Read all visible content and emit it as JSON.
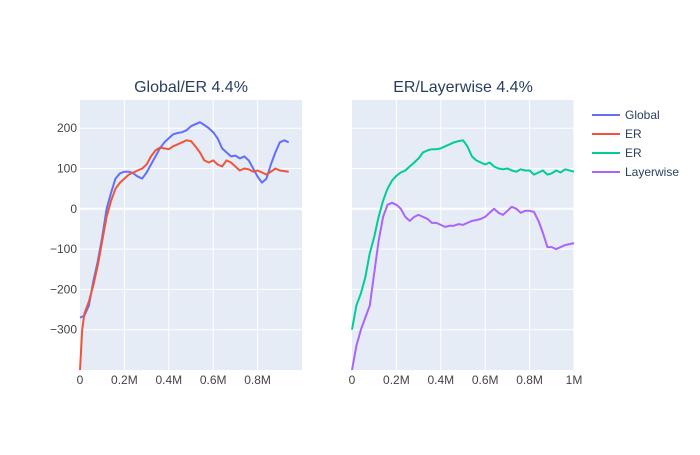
{
  "chart_data": [
    {
      "type": "line",
      "title": "Global/ER 4.4%",
      "xlim": [
        0,
        1000000
      ],
      "ylim": [
        -400,
        270
      ],
      "xticks": [
        0,
        200000,
        400000,
        600000,
        800000
      ],
      "xtick_labels": [
        "0",
        "0.2M",
        "0.4M",
        "0.6M",
        "0.8M"
      ],
      "yticks": [
        -300,
        -200,
        -100,
        0,
        100,
        200
      ],
      "ytick_labels": [
        "−300",
        "−200",
        "−100",
        "0",
        "100",
        "200"
      ],
      "grid": true,
      "series": [
        {
          "name": "Global",
          "color": "#636efa",
          "points": [
            [
              0,
              -270
            ],
            [
              20000,
              -265
            ],
            [
              40000,
              -240
            ],
            [
              60000,
              -180
            ],
            [
              80000,
              -130
            ],
            [
              100000,
              -70
            ],
            [
              120000,
              0
            ],
            [
              140000,
              40
            ],
            [
              160000,
              75
            ],
            [
              180000,
              88
            ],
            [
              200000,
              92
            ],
            [
              220000,
              92
            ],
            [
              240000,
              88
            ],
            [
              260000,
              80
            ],
            [
              280000,
              75
            ],
            [
              300000,
              90
            ],
            [
              320000,
              110
            ],
            [
              340000,
              130
            ],
            [
              360000,
              150
            ],
            [
              380000,
              165
            ],
            [
              400000,
              175
            ],
            [
              420000,
              185
            ],
            [
              440000,
              188
            ],
            [
              460000,
              190
            ],
            [
              480000,
              195
            ],
            [
              500000,
              205
            ],
            [
              520000,
              210
            ],
            [
              540000,
              215
            ],
            [
              560000,
              208
            ],
            [
              580000,
              200
            ],
            [
              600000,
              190
            ],
            [
              620000,
              175
            ],
            [
              640000,
              150
            ],
            [
              660000,
              140
            ],
            [
              680000,
              130
            ],
            [
              700000,
              132
            ],
            [
              720000,
              125
            ],
            [
              740000,
              130
            ],
            [
              760000,
              120
            ],
            [
              780000,
              100
            ],
            [
              800000,
              80
            ],
            [
              820000,
              65
            ],
            [
              840000,
              75
            ],
            [
              860000,
              110
            ],
            [
              880000,
              140
            ],
            [
              900000,
              165
            ],
            [
              920000,
              170
            ],
            [
              940000,
              165
            ]
          ]
        },
        {
          "name": "ER",
          "color": "#ef553b",
          "points": [
            [
              0,
              -400
            ],
            [
              10000,
              -300
            ],
            [
              20000,
              -260
            ],
            [
              40000,
              -230
            ],
            [
              60000,
              -190
            ],
            [
              80000,
              -140
            ],
            [
              100000,
              -80
            ],
            [
              120000,
              -20
            ],
            [
              140000,
              20
            ],
            [
              160000,
              50
            ],
            [
              180000,
              65
            ],
            [
              200000,
              75
            ],
            [
              220000,
              85
            ],
            [
              240000,
              90
            ],
            [
              260000,
              95
            ],
            [
              280000,
              100
            ],
            [
              300000,
              110
            ],
            [
              320000,
              130
            ],
            [
              340000,
              145
            ],
            [
              360000,
              152
            ],
            [
              380000,
              150
            ],
            [
              400000,
              148
            ],
            [
              420000,
              155
            ],
            [
              440000,
              160
            ],
            [
              460000,
              165
            ],
            [
              480000,
              170
            ],
            [
              500000,
              168
            ],
            [
              520000,
              155
            ],
            [
              540000,
              140
            ],
            [
              560000,
              120
            ],
            [
              580000,
              115
            ],
            [
              600000,
              120
            ],
            [
              620000,
              110
            ],
            [
              640000,
              105
            ],
            [
              660000,
              120
            ],
            [
              680000,
              115
            ],
            [
              700000,
              105
            ],
            [
              720000,
              95
            ],
            [
              740000,
              100
            ],
            [
              760000,
              98
            ],
            [
              780000,
              92
            ],
            [
              800000,
              95
            ],
            [
              820000,
              90
            ],
            [
              840000,
              85
            ],
            [
              860000,
              92
            ],
            [
              880000,
              100
            ],
            [
              900000,
              95
            ],
            [
              940000,
              92
            ]
          ]
        }
      ]
    },
    {
      "type": "line",
      "title": "ER/Layerwise 4.4%",
      "xlim": [
        0,
        1000000
      ],
      "ylim": [
        -400,
        270
      ],
      "xticks": [
        0,
        200000,
        400000,
        600000,
        800000,
        1000000
      ],
      "xtick_labels": [
        "0",
        "0.2M",
        "0.4M",
        "0.6M",
        "0.8M",
        "1M"
      ],
      "yticks": [
        -300,
        -200,
        -100,
        0,
        100,
        200
      ],
      "grid": true,
      "series": [
        {
          "name": "ER",
          "color": "#00cc96",
          "points": [
            [
              0,
              -300
            ],
            [
              20000,
              -240
            ],
            [
              40000,
              -210
            ],
            [
              60000,
              -170
            ],
            [
              80000,
              -110
            ],
            [
              100000,
              -70
            ],
            [
              120000,
              -20
            ],
            [
              140000,
              20
            ],
            [
              160000,
              50
            ],
            [
              180000,
              70
            ],
            [
              200000,
              82
            ],
            [
              220000,
              90
            ],
            [
              240000,
              95
            ],
            [
              260000,
              105
            ],
            [
              280000,
              115
            ],
            [
              300000,
              125
            ],
            [
              320000,
              140
            ],
            [
              340000,
              145
            ],
            [
              360000,
              148
            ],
            [
              380000,
              148
            ],
            [
              400000,
              150
            ],
            [
              420000,
              155
            ],
            [
              440000,
              160
            ],
            [
              460000,
              165
            ],
            [
              480000,
              168
            ],
            [
              500000,
              170
            ],
            [
              520000,
              155
            ],
            [
              540000,
              130
            ],
            [
              560000,
              120
            ],
            [
              580000,
              115
            ],
            [
              600000,
              110
            ],
            [
              620000,
              115
            ],
            [
              640000,
              105
            ],
            [
              660000,
              100
            ],
            [
              680000,
              98
            ],
            [
              700000,
              100
            ],
            [
              720000,
              95
            ],
            [
              740000,
              92
            ],
            [
              760000,
              98
            ],
            [
              780000,
              95
            ],
            [
              800000,
              95
            ],
            [
              820000,
              85
            ],
            [
              840000,
              90
            ],
            [
              860000,
              95
            ],
            [
              880000,
              85
            ],
            [
              900000,
              88
            ],
            [
              920000,
              95
            ],
            [
              940000,
              90
            ],
            [
              960000,
              98
            ],
            [
              1000000,
              92
            ]
          ]
        },
        {
          "name": "Layerwise",
          "color": "#ab63fa",
          "points": [
            [
              0,
              -400
            ],
            [
              20000,
              -340
            ],
            [
              40000,
              -300
            ],
            [
              60000,
              -270
            ],
            [
              80000,
              -240
            ],
            [
              100000,
              -160
            ],
            [
              120000,
              -80
            ],
            [
              140000,
              -20
            ],
            [
              160000,
              10
            ],
            [
              180000,
              15
            ],
            [
              200000,
              10
            ],
            [
              220000,
              0
            ],
            [
              240000,
              -20
            ],
            [
              260000,
              -30
            ],
            [
              280000,
              -20
            ],
            [
              300000,
              -15
            ],
            [
              320000,
              -20
            ],
            [
              340000,
              -25
            ],
            [
              360000,
              -35
            ],
            [
              380000,
              -35
            ],
            [
              400000,
              -40
            ],
            [
              420000,
              -45
            ],
            [
              440000,
              -42
            ],
            [
              460000,
              -42
            ],
            [
              480000,
              -38
            ],
            [
              500000,
              -40
            ],
            [
              520000,
              -35
            ],
            [
              540000,
              -30
            ],
            [
              560000,
              -28
            ],
            [
              580000,
              -25
            ],
            [
              600000,
              -20
            ],
            [
              620000,
              -10
            ],
            [
              640000,
              0
            ],
            [
              660000,
              -10
            ],
            [
              680000,
              -15
            ],
            [
              700000,
              -5
            ],
            [
              720000,
              5
            ],
            [
              740000,
              0
            ],
            [
              760000,
              -10
            ],
            [
              780000,
              -5
            ],
            [
              800000,
              -5
            ],
            [
              820000,
              -8
            ],
            [
              840000,
              -30
            ],
            [
              860000,
              -60
            ],
            [
              880000,
              -95
            ],
            [
              900000,
              -95
            ],
            [
              920000,
              -100
            ],
            [
              940000,
              -95
            ],
            [
              960000,
              -90
            ],
            [
              1000000,
              -85
            ]
          ]
        }
      ]
    }
  ],
  "legend": {
    "placement": "top-right",
    "items": [
      {
        "label": "Global",
        "color": "#636efa"
      },
      {
        "label": "ER",
        "color": "#ef553b"
      },
      {
        "label": "ER",
        "color": "#00cc96"
      },
      {
        "label": "Layerwise",
        "color": "#ab63fa"
      }
    ]
  },
  "style": {
    "plot_bg": "#e5ecf6",
    "grid_color": "#ffffff",
    "paper_bg": "#ffffff"
  }
}
